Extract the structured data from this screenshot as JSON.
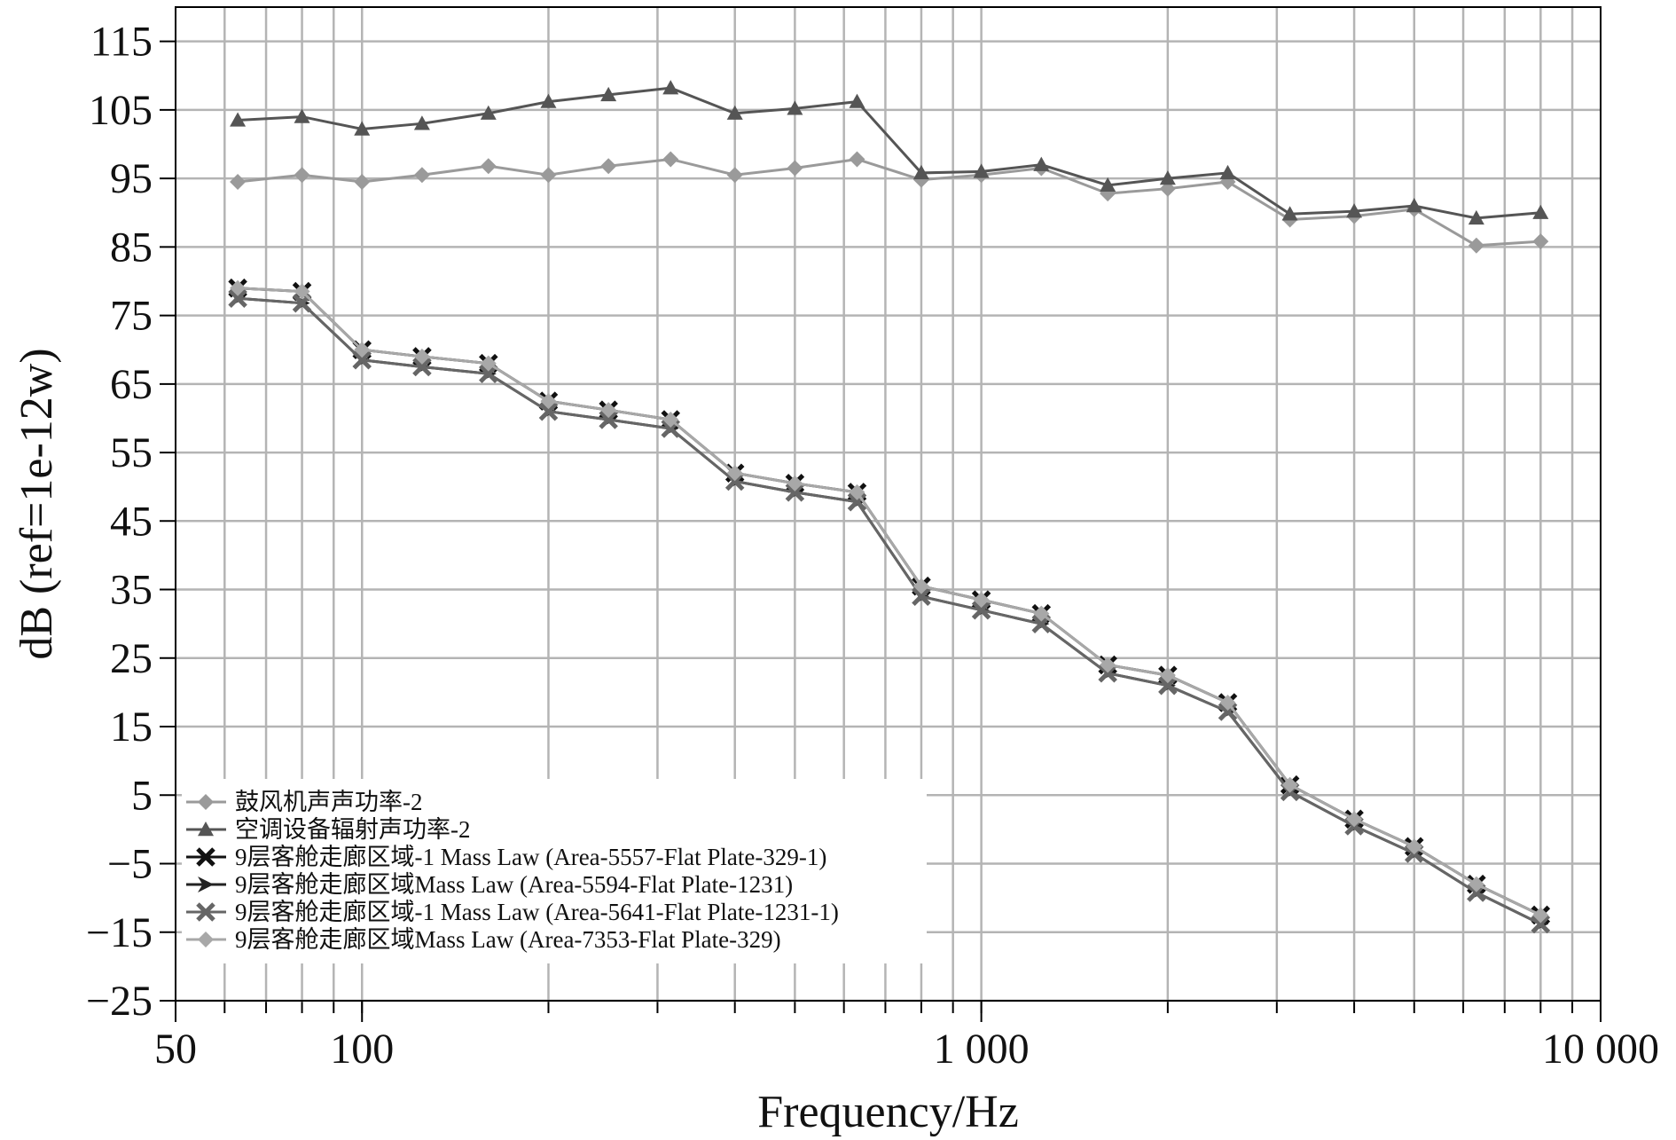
{
  "chart_data": {
    "type": "line",
    "title": "",
    "xlabel": "Frequency/Hz",
    "ylabel": "dB (ref=1e-12w)",
    "x_scale": "log",
    "xlim": [
      50,
      10000
    ],
    "ylim": [
      -25,
      120
    ],
    "grid": true,
    "legend_position": "bottom-left",
    "x_ticks": [
      {
        "value": 50,
        "label": "50"
      },
      {
        "value": 100,
        "label": "100"
      },
      {
        "value": 1000,
        "label": "1 000"
      },
      {
        "value": 10000,
        "label": "10 000"
      }
    ],
    "y_ticks": [
      {
        "value": 115,
        "label": "115"
      },
      {
        "value": 105,
        "label": "105"
      },
      {
        "value": 95,
        "label": "95"
      },
      {
        "value": 85,
        "label": "85"
      },
      {
        "value": 75,
        "label": "75"
      },
      {
        "value": 65,
        "label": "65"
      },
      {
        "value": 55,
        "label": "55"
      },
      {
        "value": 45,
        "label": "45"
      },
      {
        "value": 35,
        "label": "35"
      },
      {
        "value": 25,
        "label": "25"
      },
      {
        "value": 15,
        "label": "15"
      },
      {
        "value": 5,
        "label": "5"
      },
      {
        "value": -5,
        "label": "−5"
      },
      {
        "value": -15,
        "label": "−15"
      },
      {
        "value": -25,
        "label": "−25"
      }
    ],
    "x": [
      63,
      80,
      100,
      125,
      160,
      200,
      250,
      315,
      400,
      500,
      630,
      800,
      1000,
      1250,
      1600,
      2000,
      2500,
      3150,
      4000,
      5000,
      6300,
      8000
    ],
    "series": [
      {
        "name": "鼓风机声声功率-2",
        "color": "#9a9a9a",
        "marker": "diamond",
        "values": [
          94.5,
          95.5,
          94.5,
          95.5,
          96.8,
          95.5,
          96.8,
          97.8,
          95.5,
          96.5,
          97.8,
          94.8,
          95.5,
          96.5,
          92.8,
          93.5,
          94.5,
          89.0,
          89.5,
          90.5,
          85.2,
          85.8
        ]
      },
      {
        "name": "空调设备辐射声功率-2",
        "color": "#555555",
        "marker": "triangle",
        "values": [
          103.5,
          104.0,
          102.2,
          103.0,
          104.5,
          106.2,
          107.2,
          108.2,
          104.5,
          105.2,
          106.2,
          95.8,
          96.0,
          97.0,
          94.0,
          95.0,
          95.8,
          89.8,
          90.2,
          91.0,
          89.2,
          90.0
        ]
      },
      {
        "name": "9层客舱走廊区域-1 Mass Law (Area-5557-Flat Plate-329-1)",
        "color": "#111111",
        "marker": "x",
        "values": [
          79.0,
          78.5,
          70.0,
          69.0,
          68.0,
          62.5,
          61.2,
          59.8,
          52.0,
          50.5,
          49.2,
          35.5,
          33.5,
          31.5,
          24.0,
          22.5,
          18.5,
          6.5,
          1.5,
          -2.5,
          -8.0,
          -12.5
        ]
      },
      {
        "name": "9层客舱走廊区域Mass Law (Area-5594-Flat Plate-1231)",
        "color": "#222222",
        "marker": "arrow",
        "values": [
          77.5,
          76.8,
          68.5,
          67.5,
          66.5,
          61.0,
          59.8,
          58.5,
          50.8,
          49.2,
          47.8,
          34.0,
          32.0,
          30.0,
          22.8,
          21.0,
          17.2,
          5.5,
          0.5,
          -3.5,
          -9.2,
          -13.8
        ]
      },
      {
        "name": "9层客舱走廊区域-1 Mass Law (Area-5641-Flat Plate-1231-1)",
        "color": "#666666",
        "marker": "x",
        "values": [
          77.5,
          76.8,
          68.5,
          67.5,
          66.5,
          61.0,
          59.8,
          58.5,
          50.8,
          49.2,
          47.8,
          34.0,
          32.0,
          30.0,
          22.8,
          21.0,
          17.2,
          5.5,
          0.5,
          -3.5,
          -9.2,
          -13.8
        ]
      },
      {
        "name": "9层客舱走廊区域Mass Law (Area-7353-Flat Plate-329)",
        "color": "#a8a8a8",
        "marker": "diamond",
        "values": [
          79.0,
          78.5,
          70.0,
          69.0,
          68.0,
          62.5,
          61.2,
          59.8,
          52.0,
          50.5,
          49.2,
          35.5,
          33.5,
          31.5,
          24.0,
          22.5,
          18.5,
          6.5,
          1.5,
          -2.5,
          -8.0,
          -12.5
        ]
      }
    ]
  }
}
